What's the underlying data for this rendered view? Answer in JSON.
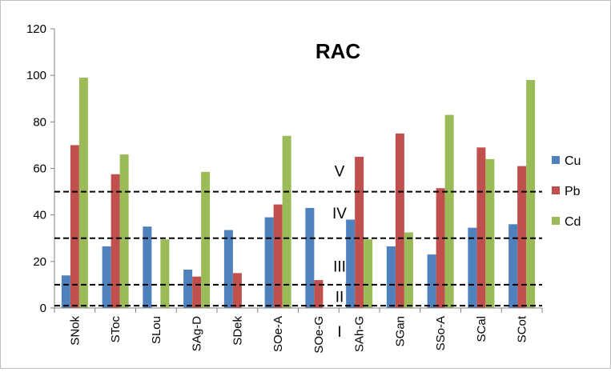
{
  "chart_data": {
    "type": "bar",
    "title": "RAC",
    "xlabel": "",
    "ylabel": "",
    "ylim": [
      0,
      120
    ],
    "yticks": [
      0,
      20,
      40,
      60,
      80,
      100,
      120
    ],
    "categories": [
      "SNok",
      "SToc",
      "SLou",
      "SAg-D",
      "SDek",
      "SOe-A",
      "SOe-G",
      "SAh-G",
      "SGan",
      "SSo-A",
      "SCal",
      "SCot"
    ],
    "series": [
      {
        "name": "Cu",
        "color": "#4f81bd",
        "values": [
          14,
          26.5,
          35,
          16.5,
          33.5,
          39,
          43,
          38,
          26.5,
          23,
          34.5,
          36
        ]
      },
      {
        "name": "Pb",
        "color": "#c0504d",
        "values": [
          70,
          57.5,
          0,
          13.5,
          15,
          44.5,
          12,
          65,
          75,
          51.5,
          69,
          61
        ]
      },
      {
        "name": "Cd",
        "color": "#9bbb59",
        "values": [
          99,
          66,
          29.5,
          58.5,
          0,
          74,
          0,
          29.5,
          32.5,
          83,
          64,
          98
        ]
      }
    ],
    "legend_position": "right",
    "grid": false,
    "reference_lines": [
      {
        "value": 1,
        "label": "I"
      },
      {
        "value": 10,
        "label": "II"
      },
      {
        "value": 30,
        "label": "III"
      },
      {
        "value": 50,
        "label": "IV"
      }
    ],
    "zone_labels": [
      {
        "label": "I",
        "y": -10
      },
      {
        "label": "II",
        "y": 5
      },
      {
        "label": "III",
        "y": 18
      },
      {
        "label": "IV",
        "y": 41
      },
      {
        "label": "V",
        "y": 59
      }
    ]
  }
}
